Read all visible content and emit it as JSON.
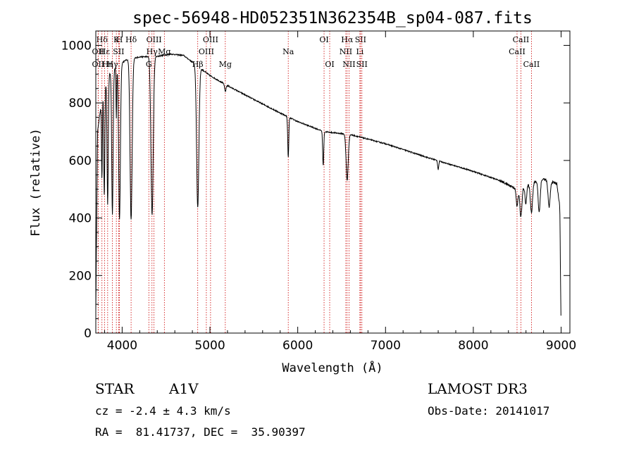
{
  "chart_data": {
    "type": "line",
    "title": "spec-56948-HD052351N362354B_sp04-087.fits",
    "xlabel": "Wavelength (Å)",
    "ylabel": "Flux (relative)",
    "xlim": [
      3700,
      9100
    ],
    "ylim": [
      0,
      1050
    ],
    "x_ticks": [
      4000,
      5000,
      6000,
      7000,
      8000,
      9000
    ],
    "y_ticks": [
      0,
      200,
      400,
      600,
      800,
      1000
    ],
    "grid": false,
    "series": [
      {
        "name": "flux",
        "continuum": [
          [
            3700,
            80
          ],
          [
            3720,
            700
          ],
          [
            3780,
            840
          ],
          [
            3850,
            900
          ],
          [
            3950,
            930
          ],
          [
            4050,
            950
          ],
          [
            4200,
            960
          ],
          [
            4400,
            962
          ],
          [
            4550,
            970
          ],
          [
            4700,
            965
          ],
          [
            4850,
            930
          ],
          [
            5000,
            895
          ],
          [
            5200,
            860
          ],
          [
            5500,
            812
          ],
          [
            5800,
            765
          ],
          [
            6000,
            735
          ],
          [
            6300,
            700
          ],
          [
            6600,
            690
          ],
          [
            7000,
            658
          ],
          [
            7500,
            608
          ],
          [
            8000,
            562
          ],
          [
            8300,
            530
          ],
          [
            8500,
            500
          ],
          [
            8700,
            525
          ],
          [
            8800,
            535
          ],
          [
            8950,
            520
          ],
          [
            8985,
            440
          ],
          [
            9000,
            0
          ]
        ],
        "absorption": [
          {
            "center": 3770,
            "depth": 280,
            "width": 5
          },
          {
            "center": 3797,
            "depth": 380,
            "width": 6
          },
          {
            "center": 3835,
            "depth": 440,
            "width": 7
          },
          {
            "center": 3889,
            "depth": 500,
            "width": 8
          },
          {
            "center": 3934,
            "depth": 180,
            "width": 4
          },
          {
            "center": 3970,
            "depth": 540,
            "width": 10
          },
          {
            "center": 4102,
            "depth": 560,
            "width": 12
          },
          {
            "center": 4341,
            "depth": 550,
            "width": 13
          },
          {
            "center": 4861,
            "depth": 490,
            "width": 13
          },
          {
            "center": 5175,
            "depth": 25,
            "width": 8
          },
          {
            "center": 5892,
            "depth": 140,
            "width": 6
          },
          {
            "center": 6290,
            "depth": 120,
            "width": 6
          },
          {
            "center": 6563,
            "depth": 160,
            "width": 12
          },
          {
            "center": 7600,
            "depth": 30,
            "width": 6
          },
          {
            "center": 8498,
            "depth": 60,
            "width": 10
          },
          {
            "center": 8542,
            "depth": 100,
            "width": 12
          },
          {
            "center": 8598,
            "depth": 60,
            "width": 10
          },
          {
            "center": 8662,
            "depth": 100,
            "width": 12
          },
          {
            "center": 8750,
            "depth": 110,
            "width": 11
          },
          {
            "center": 8863,
            "depth": 90,
            "width": 12
          }
        ]
      }
    ],
    "line_markers": [
      {
        "label": "Hδ",
        "x": 3770,
        "row": 0
      },
      {
        "label": "OII",
        "x": 3727,
        "row": 1
      },
      {
        "label": "OII",
        "x": 3727,
        "row": 2
      },
      {
        "label": "K",
        "x": 3934,
        "row": 0
      },
      {
        "label": "Hε",
        "x": 3800,
        "row": 1
      },
      {
        "label": "Hη",
        "x": 3835,
        "row": 2
      },
      {
        "label": "H",
        "x": 3969,
        "row": 0
      },
      {
        "label": "SII",
        "x": 3960,
        "row": 1
      },
      {
        "label": "Hγ",
        "x": 3889,
        "row": 2
      },
      {
        "label": "Hδ",
        "x": 4102,
        "row": 0
      },
      {
        "label": "OIII",
        "x": 4363,
        "row": 0
      },
      {
        "label": "Hγ",
        "x": 4340,
        "row": 1
      },
      {
        "label": "Mg",
        "x": 4481,
        "row": 1
      },
      {
        "label": "G",
        "x": 4304,
        "row": 2
      },
      {
        "label": "OIII",
        "x": 5007,
        "row": 0
      },
      {
        "label": "OIII",
        "x": 4959,
        "row": 1
      },
      {
        "label": "Hβ",
        "x": 4861,
        "row": 2
      },
      {
        "label": "Mg",
        "x": 5175,
        "row": 2
      },
      {
        "label": "Na",
        "x": 5892,
        "row": 1
      },
      {
        "label": "OI",
        "x": 6300,
        "row": 0
      },
      {
        "label": "OI",
        "x": 6364,
        "row": 2
      },
      {
        "label": "Hα",
        "x": 6563,
        "row": 0
      },
      {
        "label": "SII",
        "x": 6716,
        "row": 0
      },
      {
        "label": "NII",
        "x": 6548,
        "row": 1
      },
      {
        "label": "Li",
        "x": 6708,
        "row": 1
      },
      {
        "label": "NII",
        "x": 6584,
        "row": 2
      },
      {
        "label": "SII",
        "x": 6731,
        "row": 2
      },
      {
        "label": "CaII",
        "x": 8542,
        "row": 0
      },
      {
        "label": "CaII",
        "x": 8498,
        "row": 1
      },
      {
        "label": "CaII",
        "x": 8662,
        "row": 2
      }
    ]
  },
  "info": {
    "class": "STAR",
    "subclass": "A1V",
    "survey": "LAMOST DR3",
    "cz": "cz = -2.4 ± 4.3 km/s",
    "obs_date": "Obs-Date: 20141017",
    "coords": "RA =  81.41737, DEC =  35.90397"
  },
  "colors": {
    "spectrum": "#000000",
    "marker_line": "#cc0000"
  }
}
